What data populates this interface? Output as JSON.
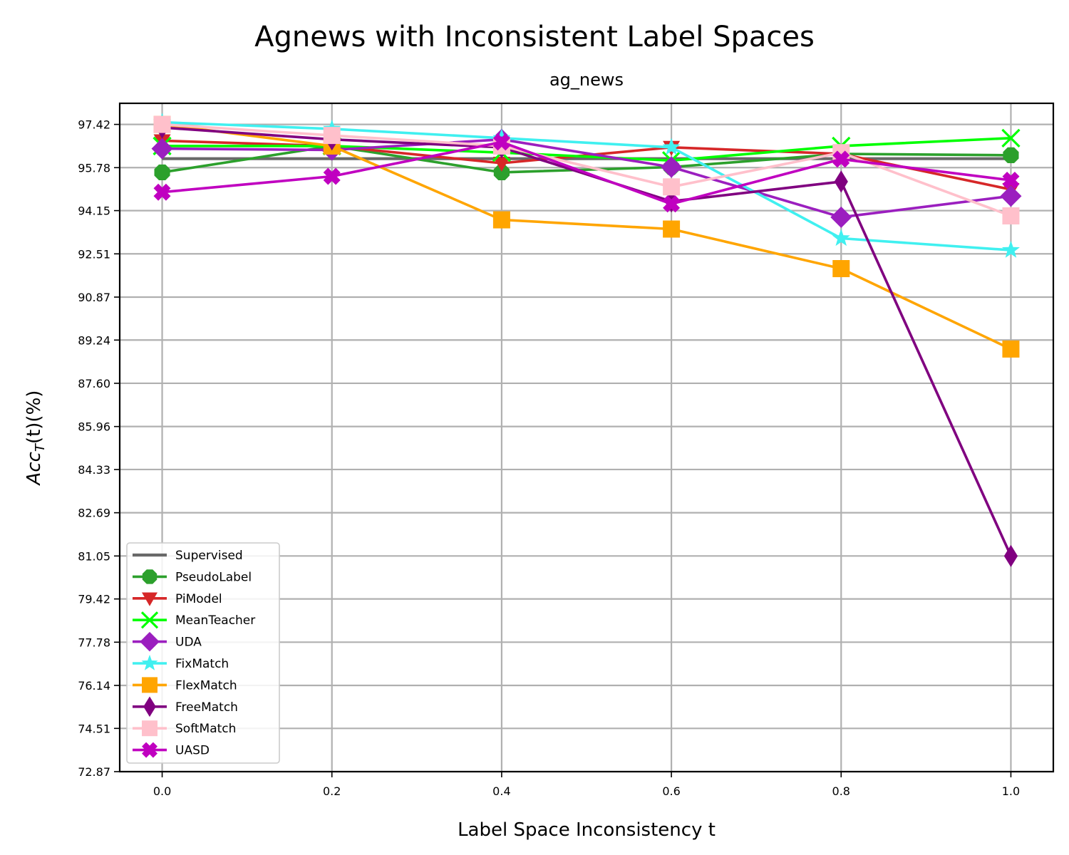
{
  "chart_data": {
    "type": "line",
    "suptitle": "Agnews with Inconsistent Label Spaces",
    "title": "ag_news",
    "xlabel": "Label Space Inconsistency t",
    "ylabel_main": "Acc",
    "ylabel_sub": "T",
    "ylabel_rest": "(t)(%)",
    "x": [
      0.0,
      0.2,
      0.4,
      0.6,
      0.8,
      1.0
    ],
    "x_ticks": [
      "0.0",
      "0.2",
      "0.4",
      "0.6",
      "0.8",
      "1.0"
    ],
    "xlim": [
      -0.05,
      1.05
    ],
    "ylim": [
      72.87,
      98.22
    ],
    "y_ticks": [
      "72.87",
      "74.51",
      "76.14",
      "77.78",
      "79.42",
      "81.05",
      "82.69",
      "84.33",
      "85.96",
      "87.60",
      "89.24",
      "90.87",
      "92.51",
      "94.15",
      "95.78",
      "97.42"
    ],
    "grid": true,
    "legend_position": "lower-left",
    "series": [
      {
        "name": "Supervised",
        "color": "#696969",
        "marker": "none",
        "values": [
          96.12,
          96.12,
          96.12,
          96.12,
          96.12,
          96.12
        ]
      },
      {
        "name": "PseudoLabel",
        "color": "#2ca02c",
        "marker": "octagon",
        "values": [
          95.6,
          96.6,
          95.6,
          95.8,
          96.3,
          96.25
        ]
      },
      {
        "name": "PiModel",
        "color": "#d62728",
        "marker": "triangle-down",
        "values": [
          96.8,
          96.6,
          95.95,
          96.55,
          96.3,
          94.95
        ]
      },
      {
        "name": "MeanTeacher",
        "color": "#00ff00",
        "marker": "x",
        "values": [
          96.6,
          96.6,
          96.35,
          96.05,
          96.6,
          96.9
        ]
      },
      {
        "name": "UDA",
        "color": "#9b1fbf",
        "marker": "diamond",
        "values": [
          96.5,
          96.45,
          96.85,
          95.8,
          93.9,
          94.7
        ]
      },
      {
        "name": "FixMatch",
        "color": "#40f0f0",
        "marker": "star",
        "values": [
          97.5,
          97.25,
          96.9,
          96.55,
          93.1,
          92.65
        ]
      },
      {
        "name": "FlexMatch",
        "color": "#ffa500",
        "marker": "square",
        "values": [
          97.42,
          96.6,
          93.8,
          93.45,
          91.95,
          88.9
        ]
      },
      {
        "name": "FreeMatch",
        "color": "#800080",
        "marker": "thin-diamond",
        "values": [
          97.3,
          96.85,
          96.55,
          94.5,
          95.25,
          81.05
        ]
      },
      {
        "name": "SoftMatch",
        "color": "#ffc0cb",
        "marker": "square",
        "values": [
          97.42,
          97.0,
          96.6,
          95.05,
          96.35,
          93.95
        ]
      },
      {
        "name": "UASD",
        "color": "#c000c0",
        "marker": "plus-x",
        "values": [
          94.85,
          95.45,
          96.75,
          94.4,
          96.1,
          95.3
        ]
      }
    ]
  }
}
